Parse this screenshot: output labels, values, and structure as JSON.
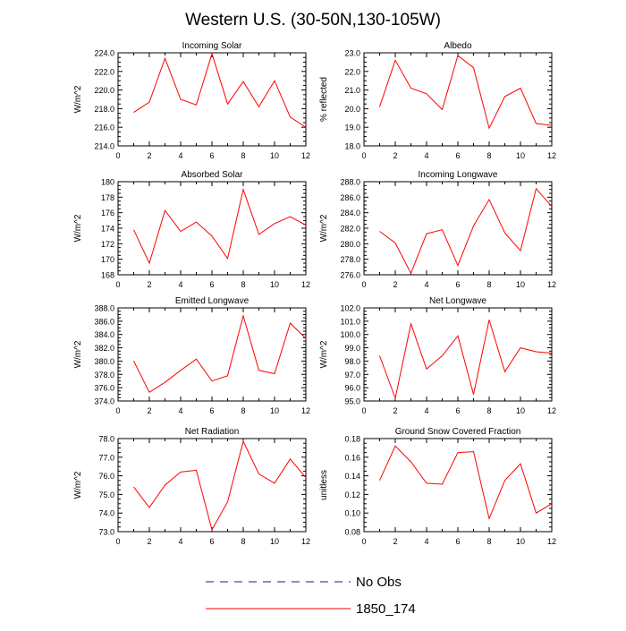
{
  "title": "Western U.S. (30-50N,130-105W)",
  "legend": {
    "entries": [
      {
        "label": "No Obs",
        "color": "#1a1a8c",
        "style": "dashed"
      },
      {
        "label": "1850_174",
        "color": "#ff0000",
        "style": "solid"
      }
    ]
  },
  "chart_data": [
    {
      "type": "line",
      "title": "Incoming Solar",
      "xlabel": "",
      "ylabel": "W/m^2",
      "xlim": [
        0,
        12
      ],
      "ylim": [
        214,
        224
      ],
      "yticks": [
        "214.0",
        "216.0",
        "218.0",
        "220.0",
        "222.0",
        "224.0"
      ],
      "xticks": [
        "0",
        "2",
        "4",
        "6",
        "8",
        "10",
        "12"
      ],
      "series": [
        {
          "name": "1850_174",
          "color": "#ff0000",
          "x": [
            1,
            2,
            3,
            4,
            5,
            6,
            7,
            8,
            9,
            10,
            11,
            12
          ],
          "values": [
            217.6,
            218.7,
            223.4,
            219.0,
            218.4,
            223.9,
            218.5,
            220.9,
            218.2,
            221.0,
            217.1,
            216.0
          ]
        }
      ]
    },
    {
      "type": "line",
      "title": "Albedo",
      "xlabel": "",
      "ylabel": "% reflected",
      "xlim": [
        0,
        12
      ],
      "ylim": [
        18,
        23
      ],
      "yticks": [
        "18.0",
        "19.0",
        "20.0",
        "21.0",
        "22.0",
        "23.0"
      ],
      "xticks": [
        "0",
        "2",
        "4",
        "6",
        "8",
        "10",
        "12"
      ],
      "series": [
        {
          "name": "1850_174",
          "color": "#ff0000",
          "x": [
            1,
            2,
            3,
            4,
            5,
            6,
            7,
            8,
            9,
            10,
            11,
            12
          ],
          "values": [
            20.1,
            22.6,
            21.1,
            20.8,
            19.95,
            22.85,
            22.2,
            18.95,
            20.65,
            21.1,
            19.2,
            19.1
          ]
        }
      ]
    },
    {
      "type": "line",
      "title": "Absorbed Solar",
      "xlabel": "",
      "ylabel": "W/m^2",
      "xlim": [
        0,
        12
      ],
      "ylim": [
        168,
        180
      ],
      "yticks": [
        "168",
        "170",
        "172",
        "174",
        "176",
        "178",
        "180"
      ],
      "xticks": [
        "0",
        "2",
        "4",
        "6",
        "8",
        "10",
        "12"
      ],
      "series": [
        {
          "name": "1850_174",
          "color": "#ff0000",
          "x": [
            1,
            2,
            3,
            4,
            5,
            6,
            7,
            8,
            9,
            10,
            11,
            12
          ],
          "values": [
            173.8,
            169.5,
            176.3,
            173.6,
            174.8,
            173.0,
            170.1,
            179.0,
            173.2,
            174.6,
            175.5,
            174.4
          ]
        }
      ]
    },
    {
      "type": "line",
      "title": "Incoming Longwave",
      "xlabel": "",
      "ylabel": "W/m^2",
      "xlim": [
        0,
        12
      ],
      "ylim": [
        276,
        288
      ],
      "yticks": [
        "276.0",
        "278.0",
        "280.0",
        "282.0",
        "284.0",
        "286.0",
        "288.0"
      ],
      "xticks": [
        "0",
        "2",
        "4",
        "6",
        "8",
        "10",
        "12"
      ],
      "series": [
        {
          "name": "1850_174",
          "color": "#ff0000",
          "x": [
            1,
            2,
            3,
            4,
            5,
            6,
            7,
            8,
            9,
            10,
            11,
            12
          ],
          "values": [
            281.6,
            280.1,
            276.2,
            281.3,
            281.8,
            277.2,
            282.3,
            285.7,
            281.4,
            279.1,
            287.1,
            284.8
          ]
        }
      ]
    },
    {
      "type": "line",
      "title": "Emitted Longwave",
      "xlabel": "",
      "ylabel": "W/m^2",
      "xlim": [
        0,
        12
      ],
      "ylim": [
        374,
        388
      ],
      "yticks": [
        "374.0",
        "376.0",
        "378.0",
        "380.0",
        "382.0",
        "384.0",
        "386.0",
        "388.0"
      ],
      "xticks": [
        "0",
        "2",
        "4",
        "6",
        "8",
        "10",
        "12"
      ],
      "series": [
        {
          "name": "1850_174",
          "color": "#ff0000",
          "x": [
            1,
            2,
            3,
            4,
            5,
            6,
            7,
            8,
            9,
            10,
            11,
            12
          ],
          "values": [
            380.0,
            375.3,
            376.8,
            378.6,
            380.3,
            377.0,
            377.8,
            386.8,
            378.6,
            378.1,
            385.7,
            383.4
          ]
        }
      ]
    },
    {
      "type": "line",
      "title": "Net Longwave",
      "xlabel": "",
      "ylabel": "W/m^2",
      "xlim": [
        0,
        12
      ],
      "ylim": [
        95,
        102
      ],
      "yticks": [
        "95.0",
        "96.0",
        "97.0",
        "98.0",
        "99.0",
        "100.0",
        "101.0",
        "102.0"
      ],
      "xticks": [
        "0",
        "2",
        "4",
        "6",
        "8",
        "10",
        "12"
      ],
      "series": [
        {
          "name": "1850_174",
          "color": "#ff0000",
          "x": [
            1,
            2,
            3,
            4,
            5,
            6,
            7,
            8,
            9,
            10,
            11,
            12
          ],
          "values": [
            98.4,
            95.2,
            100.8,
            97.4,
            98.4,
            99.9,
            95.5,
            101.1,
            97.2,
            99.0,
            98.7,
            98.6
          ]
        }
      ]
    },
    {
      "type": "line",
      "title": "Net Radiation",
      "xlabel": "",
      "ylabel": "W/m^2",
      "xlim": [
        0,
        12
      ],
      "ylim": [
        73,
        78
      ],
      "yticks": [
        "73.0",
        "74.0",
        "75.0",
        "76.0",
        "77.0",
        "78.0"
      ],
      "xticks": [
        "0",
        "2",
        "4",
        "6",
        "8",
        "10",
        "12"
      ],
      "series": [
        {
          "name": "1850_174",
          "color": "#ff0000",
          "x": [
            1,
            2,
            3,
            4,
            5,
            6,
            7,
            8,
            9,
            10,
            11,
            12
          ],
          "values": [
            75.4,
            74.3,
            75.5,
            76.2,
            76.3,
            73.1,
            74.6,
            77.85,
            76.1,
            75.6,
            76.9,
            75.9
          ]
        }
      ]
    },
    {
      "type": "line",
      "title": "Ground Snow Covered Fraction",
      "xlabel": "",
      "ylabel": "unitless",
      "xlim": [
        0,
        12
      ],
      "ylim": [
        0.08,
        0.18
      ],
      "yticks": [
        "0.08",
        "0.10",
        "0.12",
        "0.14",
        "0.16",
        "0.18"
      ],
      "xticks": [
        "0",
        "2",
        "4",
        "6",
        "8",
        "10",
        "12"
      ],
      "series": [
        {
          "name": "1850_174",
          "color": "#ff0000",
          "x": [
            1,
            2,
            3,
            4,
            5,
            6,
            7,
            8,
            9,
            10,
            11,
            12
          ],
          "values": [
            0.135,
            0.172,
            0.155,
            0.132,
            0.131,
            0.165,
            0.166,
            0.094,
            0.135,
            0.153,
            0.1,
            0.11
          ]
        }
      ]
    }
  ]
}
